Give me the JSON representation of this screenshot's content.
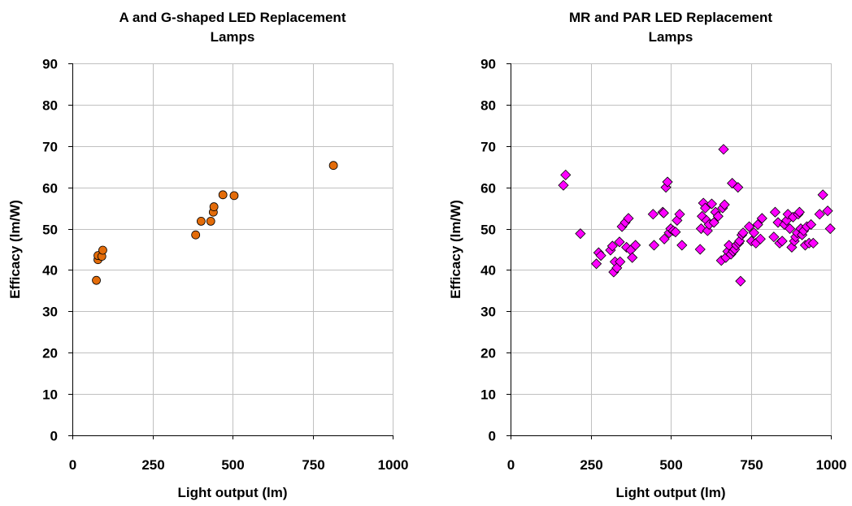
{
  "chart_data": [
    {
      "type": "scatter",
      "title": "A and G-shaped LED Replacement Lamps",
      "title_lines": [
        "A and G-shaped LED Replacement",
        "Lamps"
      ],
      "xlabel": "Light output (lm)",
      "ylabel": "Efficacy (lm/W)",
      "xlim": [
        0,
        1000
      ],
      "ylim": [
        0,
        90
      ],
      "xticks": [
        0,
        250,
        500,
        750,
        1000
      ],
      "yticks": [
        0,
        10,
        20,
        30,
        40,
        50,
        60,
        70,
        80,
        90
      ],
      "grid": true,
      "marker": "circle",
      "marker_color": "#E36C0A",
      "series": [
        {
          "points": [
            [
              75,
              37.5
            ],
            [
              80,
              42.5
            ],
            [
              80,
              43.5
            ],
            [
              92,
              43.3
            ],
            [
              95,
              44.8
            ],
            [
              385,
              48.5
            ],
            [
              402,
              51.8
            ],
            [
              432,
              51.8
            ],
            [
              440,
              54.0
            ],
            [
              442,
              55.3
            ],
            [
              470,
              58.2
            ],
            [
              505,
              58.0
            ],
            [
              815,
              65.3
            ]
          ]
        }
      ]
    },
    {
      "type": "scatter",
      "title": "MR and PAR LED Replacement Lamps",
      "title_lines": [
        "MR and PAR LED Replacement",
        "Lamps"
      ],
      "xlabel": "Light output (lm)",
      "ylabel": "Efficacy (lm/W)",
      "xlim": [
        0,
        1000
      ],
      "ylim": [
        0,
        90
      ],
      "xticks": [
        0,
        250,
        500,
        750,
        1000
      ],
      "yticks": [
        0,
        10,
        20,
        30,
        40,
        50,
        60,
        70,
        80,
        90
      ],
      "grid": true,
      "marker": "diamond",
      "marker_color": "#FF00FF",
      "series": [
        {
          "points": [
            [
              165,
              60.5
            ],
            [
              172,
              63.0
            ],
            [
              218,
              48.8
            ],
            [
              268,
              41.5
            ],
            [
              275,
              44.2
            ],
            [
              282,
              43.5
            ],
            [
              312,
              44.8
            ],
            [
              318,
              45.8
            ],
            [
              322,
              39.5
            ],
            [
              326,
              42.0
            ],
            [
              332,
              40.5
            ],
            [
              340,
              46.8
            ],
            [
              342,
              42.0
            ],
            [
              348,
              50.5
            ],
            [
              358,
              51.5
            ],
            [
              362,
              45.5
            ],
            [
              368,
              52.5
            ],
            [
              375,
              44.8
            ],
            [
              380,
              43.0
            ],
            [
              390,
              46.0
            ],
            [
              445,
              53.5
            ],
            [
              448,
              46.0
            ],
            [
              475,
              54.0
            ],
            [
              478,
              53.8
            ],
            [
              480,
              47.5
            ],
            [
              485,
              60.0
            ],
            [
              490,
              61.3
            ],
            [
              495,
              49.0
            ],
            [
              500,
              50.0
            ],
            [
              508,
              49.5
            ],
            [
              515,
              49.2
            ],
            [
              520,
              52.0
            ],
            [
              528,
              53.5
            ],
            [
              535,
              46.0
            ],
            [
              592,
              45.0
            ],
            [
              595,
              50.0
            ],
            [
              598,
              53.0
            ],
            [
              602,
              56.2
            ],
            [
              608,
              55.0
            ],
            [
              612,
              52.0
            ],
            [
              615,
              49.5
            ],
            [
              620,
              51.0
            ],
            [
              628,
              56.0
            ],
            [
              635,
              51.5
            ],
            [
              640,
              54.0
            ],
            [
              648,
              53.0
            ],
            [
              658,
              42.3
            ],
            [
              662,
              55.0
            ],
            [
              665,
              69.2
            ],
            [
              668,
              55.8
            ],
            [
              672,
              43.0
            ],
            [
              678,
              44.5
            ],
            [
              682,
              46.0
            ],
            [
              688,
              43.8
            ],
            [
              692,
              61.0
            ],
            [
              695,
              44.5
            ],
            [
              700,
              45.0
            ],
            [
              705,
              46.0
            ],
            [
              710,
              60.0
            ],
            [
              712,
              46.5
            ],
            [
              715,
              47.0
            ],
            [
              718,
              37.3
            ],
            [
              722,
              48.5
            ],
            [
              726,
              49.0
            ],
            [
              745,
              50.5
            ],
            [
              752,
              47.0
            ],
            [
              760,
              49.0
            ],
            [
              766,
              46.5
            ],
            [
              772,
              51.0
            ],
            [
              780,
              47.5
            ],
            [
              785,
              52.5
            ],
            [
              822,
              48.0
            ],
            [
              826,
              54.0
            ],
            [
              835,
              51.5
            ],
            [
              840,
              46.5
            ],
            [
              848,
              47.0
            ],
            [
              855,
              51.0
            ],
            [
              862,
              52.0
            ],
            [
              866,
              53.5
            ],
            [
              872,
              50.0
            ],
            [
              878,
              45.5
            ],
            [
              882,
              52.8
            ],
            [
              886,
              47.0
            ],
            [
              890,
              48.0
            ],
            [
              895,
              49.0
            ],
            [
              898,
              53.5
            ],
            [
              902,
              54.0
            ],
            [
              906,
              50.0
            ],
            [
              910,
              48.5
            ],
            [
              915,
              49.5
            ],
            [
              920,
              46.0
            ],
            [
              925,
              50.5
            ],
            [
              932,
              46.5
            ],
            [
              938,
              51.0
            ],
            [
              945,
              46.5
            ],
            [
              965,
              53.5
            ],
            [
              975,
              58.2
            ],
            [
              990,
              54.3
            ],
            [
              998,
              50.0
            ]
          ]
        }
      ]
    }
  ]
}
